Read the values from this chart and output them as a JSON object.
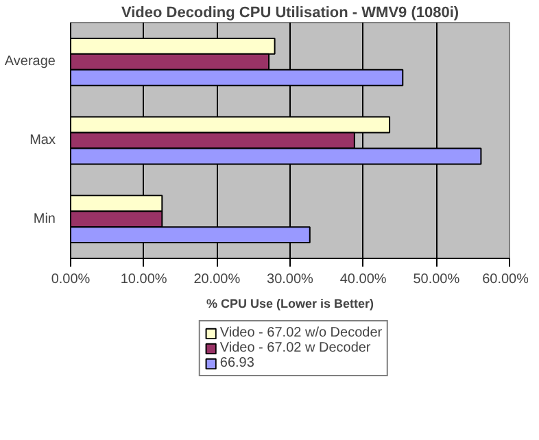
{
  "chart_data": {
    "type": "bar",
    "orientation": "horizontal",
    "title": "Video Decoding CPU Utilisation - WMV9 (1080i)",
    "xlabel": "% CPU Use (Lower is Better)",
    "categories": [
      "Average",
      "Max",
      "Min"
    ],
    "series": [
      {
        "name": "Video - 67.02 w/o Decoder",
        "color": "#ffffcc",
        "values": [
          27.9,
          43.6,
          12.5
        ]
      },
      {
        "name": "Video - 67.02 w Decoder",
        "color": "#993366",
        "values": [
          27.1,
          38.8,
          12.5
        ]
      },
      {
        "name": "66.93",
        "color": "#9999ff",
        "values": [
          45.4,
          56.1,
          32.7
        ]
      }
    ],
    "xlim": [
      0,
      60
    ],
    "xticks": [
      {
        "value": 0,
        "label": "0.00%"
      },
      {
        "value": 10,
        "label": "10.00%"
      },
      {
        "value": 20,
        "label": "20.00%"
      },
      {
        "value": 30,
        "label": "30.00%"
      },
      {
        "value": 40,
        "label": "40.00%"
      },
      {
        "value": 50,
        "label": "50.00%"
      },
      {
        "value": 60,
        "label": "60.00%"
      }
    ],
    "grid": "x",
    "legend": "bottom"
  }
}
